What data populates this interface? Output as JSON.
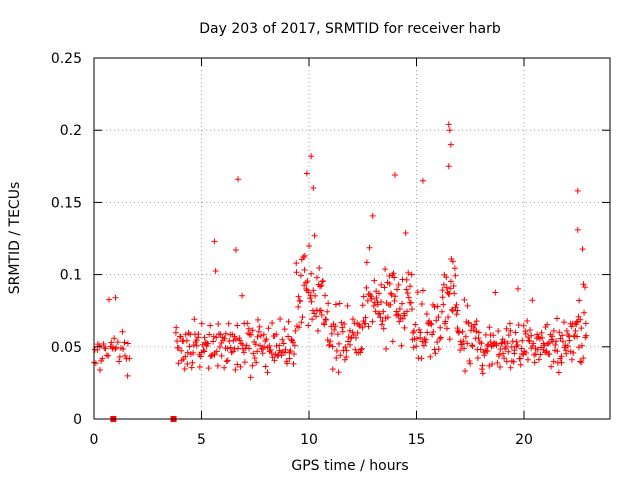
{
  "chart_data": {
    "type": "scatter",
    "title": "Day 203 of 2017, SRMTID for receiver harb",
    "xlabel": "GPS time / hours",
    "ylabel": "SRMTID / TECUs",
    "xlim": [
      0,
      24
    ],
    "ylim": [
      0,
      0.25
    ],
    "xticks": [
      0,
      5,
      10,
      15,
      20
    ],
    "xtick_labels": [
      "0",
      "5",
      "10",
      "15",
      "20"
    ],
    "yticks": [
      0,
      0.05,
      0.1,
      0.15,
      0.2,
      0.25
    ],
    "ytick_labels": [
      "0",
      "0.05",
      "0.1",
      "0.15",
      "0.2",
      "0.25"
    ],
    "grid": true,
    "marker": "+",
    "color": "#ff0000",
    "segments": [
      {
        "start": 0.0,
        "end": 1.7,
        "step": 0.05,
        "center": 0.047,
        "spread": 0.022
      },
      {
        "start": 3.8,
        "end": 9.4,
        "step": 0.032,
        "center": 0.05,
        "spread": 0.025
      },
      {
        "start": 9.4,
        "end": 10.8,
        "step": 0.028,
        "center": 0.085,
        "spread": 0.04
      },
      {
        "start": 10.8,
        "end": 12.5,
        "step": 0.032,
        "center": 0.058,
        "spread": 0.03
      },
      {
        "start": 12.5,
        "end": 14.8,
        "step": 0.028,
        "center": 0.08,
        "spread": 0.04
      },
      {
        "start": 14.8,
        "end": 16.2,
        "step": 0.032,
        "center": 0.06,
        "spread": 0.03
      },
      {
        "start": 16.2,
        "end": 16.9,
        "step": 0.025,
        "center": 0.09,
        "spread": 0.05
      },
      {
        "start": 16.9,
        "end": 22.3,
        "step": 0.03,
        "center": 0.052,
        "spread": 0.026
      },
      {
        "start": 22.3,
        "end": 22.9,
        "step": 0.025,
        "center": 0.065,
        "spread": 0.035
      }
    ],
    "outliers": [
      {
        "x": 6.7,
        "y": 0.166
      },
      {
        "x": 10.1,
        "y": 0.182
      },
      {
        "x": 10.2,
        "y": 0.16
      },
      {
        "x": 9.9,
        "y": 0.17
      },
      {
        "x": 14.0,
        "y": 0.169
      },
      {
        "x": 15.3,
        "y": 0.165
      },
      {
        "x": 16.5,
        "y": 0.204
      },
      {
        "x": 16.55,
        "y": 0.2
      },
      {
        "x": 16.6,
        "y": 0.19
      },
      {
        "x": 16.5,
        "y": 0.175
      },
      {
        "x": 22.5,
        "y": 0.158
      },
      {
        "x": 22.5,
        "y": 0.131
      },
      {
        "x": 5.6,
        "y": 0.123
      },
      {
        "x": 6.6,
        "y": 0.117
      },
      {
        "x": 1.0,
        "y": 0.084
      }
    ],
    "data_gaps": [
      {
        "x": 0.9,
        "y": 0.0
      },
      {
        "x": 3.7,
        "y": 0.0
      }
    ]
  }
}
